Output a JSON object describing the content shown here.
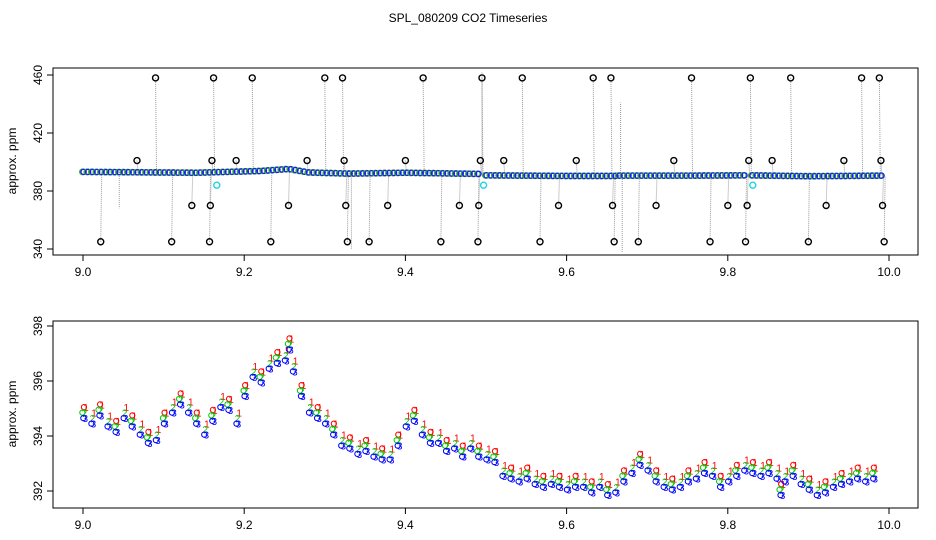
{
  "title": "SPL_080209  CO2 Timeseries",
  "chart_data": [
    {
      "type": "scatter",
      "ylabel": "approx. ppm",
      "xlabel": "",
      "xlim": [
        9.0,
        10.0
      ],
      "ylim": [
        340,
        460
      ],
      "xticks": [
        "9.0",
        "9.2",
        "9.4",
        "9.6",
        "9.8",
        "10.0"
      ],
      "yticks": [
        "340",
        "380",
        "420",
        "460"
      ],
      "xtick_values": [
        9.0,
        9.2,
        9.4,
        9.6,
        9.8,
        10.0
      ],
      "ytick_values": [
        340,
        380,
        420,
        460
      ],
      "baseline_segments": [
        {
          "x": [
            9.0,
            9.14,
            9.22,
            9.255,
            9.28,
            9.33
          ],
          "y": [
            393.2,
            392.6,
            393.8,
            395.2,
            392.8,
            392.0
          ]
        },
        {
          "x": [
            9.33,
            9.4,
            9.49
          ],
          "y": [
            392.0,
            392.6,
            391.8
          ]
        },
        {
          "x": [
            9.5,
            9.6,
            9.66
          ],
          "y": [
            390.8,
            390.4,
            390.4
          ]
        },
        {
          "x": [
            9.665,
            9.75,
            9.82
          ],
          "y": [
            390.6,
            390.6,
            390.8
          ]
        },
        {
          "x": [
            9.83,
            9.9,
            9.99
          ],
          "y": [
            390.8,
            390.2,
            390.6
          ]
        }
      ],
      "outliers": [
        {
          "x": 9.022,
          "y": 345
        },
        {
          "x": 9.067,
          "y": 401
        },
        {
          "x": 9.09,
          "y": 458
        },
        {
          "x": 9.11,
          "y": 345
        },
        {
          "x": 9.135,
          "y": 370
        },
        {
          "x": 9.157,
          "y": 345
        },
        {
          "x": 9.158,
          "y": 370
        },
        {
          "x": 9.16,
          "y": 401
        },
        {
          "x": 9.162,
          "y": 458
        },
        {
          "x": 9.19,
          "y": 401
        },
        {
          "x": 9.21,
          "y": 458
        },
        {
          "x": 9.233,
          "y": 345
        },
        {
          "x": 9.255,
          "y": 370
        },
        {
          "x": 9.278,
          "y": 401
        },
        {
          "x": 9.3,
          "y": 458
        },
        {
          "x": 9.322,
          "y": 458
        },
        {
          "x": 9.324,
          "y": 401
        },
        {
          "x": 9.326,
          "y": 370
        },
        {
          "x": 9.328,
          "y": 345
        },
        {
          "x": 9.355,
          "y": 345
        },
        {
          "x": 9.378,
          "y": 370
        },
        {
          "x": 9.4,
          "y": 401
        },
        {
          "x": 9.422,
          "y": 458
        },
        {
          "x": 9.444,
          "y": 345
        },
        {
          "x": 9.467,
          "y": 370
        },
        {
          "x": 9.49,
          "y": 345
        },
        {
          "x": 9.491,
          "y": 370
        },
        {
          "x": 9.493,
          "y": 401
        },
        {
          "x": 9.495,
          "y": 458
        },
        {
          "x": 9.522,
          "y": 401
        },
        {
          "x": 9.545,
          "y": 458
        },
        {
          "x": 9.567,
          "y": 345
        },
        {
          "x": 9.59,
          "y": 370
        },
        {
          "x": 9.612,
          "y": 401
        },
        {
          "x": 9.633,
          "y": 458
        },
        {
          "x": 9.655,
          "y": 458
        },
        {
          "x": 9.657,
          "y": 370
        },
        {
          "x": 9.659,
          "y": 345
        },
        {
          "x": 9.689,
          "y": 345
        },
        {
          "x": 9.711,
          "y": 370
        },
        {
          "x": 9.733,
          "y": 401
        },
        {
          "x": 9.755,
          "y": 458
        },
        {
          "x": 9.778,
          "y": 345
        },
        {
          "x": 9.8,
          "y": 370
        },
        {
          "x": 9.822,
          "y": 345
        },
        {
          "x": 9.824,
          "y": 370
        },
        {
          "x": 9.826,
          "y": 401
        },
        {
          "x": 9.828,
          "y": 458
        },
        {
          "x": 9.855,
          "y": 401
        },
        {
          "x": 9.878,
          "y": 458
        },
        {
          "x": 9.9,
          "y": 345
        },
        {
          "x": 9.922,
          "y": 370
        },
        {
          "x": 9.944,
          "y": 401
        },
        {
          "x": 9.966,
          "y": 458
        },
        {
          "x": 9.988,
          "y": 458
        },
        {
          "x": 9.99,
          "y": 401
        },
        {
          "x": 9.992,
          "y": 370
        },
        {
          "x": 9.994,
          "y": 345
        }
      ],
      "cyan_points": [
        {
          "x": 9.166,
          "y": 384
        },
        {
          "x": 9.497,
          "y": 384
        },
        {
          "x": 9.831,
          "y": 384
        }
      ],
      "spikes": [
        {
          "x": 9.045,
          "y1": 393,
          "y2": 368
        },
        {
          "x": 9.333,
          "y1": 392,
          "y2": 340
        },
        {
          "x": 9.495,
          "y1": 392,
          "y2": 462
        },
        {
          "x": 9.667,
          "y1": 391,
          "y2": 441
        },
        {
          "x": 9.669,
          "y1": 391,
          "y2": 338
        }
      ]
    },
    {
      "type": "scatter",
      "ylabel": "approx. ppm",
      "xlabel": "",
      "xlim": [
        9.0,
        10.0
      ],
      "ylim": [
        391.3,
        398.2
      ],
      "xticks": [
        "9.0",
        "9.2",
        "9.4",
        "9.6",
        "9.8",
        "10.0"
      ],
      "yticks": [
        "392",
        "394",
        "396",
        "398"
      ],
      "xtick_values": [
        9.0,
        9.2,
        9.4,
        9.6,
        9.8,
        10.0
      ],
      "ytick_values": [
        392,
        394,
        396,
        398
      ],
      "series_markers": [
        {
          "name": "1",
          "color": "#ff0000",
          "dx": 0.0012,
          "dy": 0.25
        },
        {
          "name": "2",
          "color": "#00cc00",
          "dx": -0.0008,
          "dy": 0.05
        },
        {
          "name": "3",
          "color": "#0000ff",
          "dx": 0.0004,
          "dy": -0.15
        }
      ],
      "points": [
        [
          9.0,
          394.8
        ],
        [
          9.01,
          394.6
        ],
        [
          9.02,
          394.9
        ],
        [
          9.03,
          394.5
        ],
        [
          9.04,
          394.3
        ],
        [
          9.05,
          394.8
        ],
        [
          9.06,
          394.5
        ],
        [
          9.07,
          394.2
        ],
        [
          9.08,
          393.9
        ],
        [
          9.09,
          394.0
        ],
        [
          9.1,
          394.6
        ],
        [
          9.11,
          395.0
        ],
        [
          9.12,
          395.3
        ],
        [
          9.13,
          395.0
        ],
        [
          9.14,
          394.6
        ],
        [
          9.15,
          394.2
        ],
        [
          9.16,
          394.7
        ],
        [
          9.17,
          395.2
        ],
        [
          9.18,
          395.1
        ],
        [
          9.19,
          394.6
        ],
        [
          9.2,
          395.6
        ],
        [
          9.21,
          396.3
        ],
        [
          9.22,
          396.1
        ],
        [
          9.23,
          396.6
        ],
        [
          9.24,
          396.8
        ],
        [
          9.25,
          396.9
        ],
        [
          9.255,
          397.3
        ],
        [
          9.26,
          396.5
        ],
        [
          9.27,
          395.6
        ],
        [
          9.28,
          395.0
        ],
        [
          9.29,
          394.8
        ],
        [
          9.3,
          394.6
        ],
        [
          9.31,
          394.2
        ],
        [
          9.32,
          393.8
        ],
        [
          9.33,
          393.7
        ],
        [
          9.34,
          393.5
        ],
        [
          9.35,
          393.6
        ],
        [
          9.36,
          393.4
        ],
        [
          9.37,
          393.3
        ],
        [
          9.38,
          393.3
        ],
        [
          9.39,
          393.8
        ],
        [
          9.4,
          394.5
        ],
        [
          9.41,
          394.7
        ],
        [
          9.42,
          394.2
        ],
        [
          9.43,
          393.9
        ],
        [
          9.44,
          393.9
        ],
        [
          9.45,
          393.6
        ],
        [
          9.46,
          393.7
        ],
        [
          9.47,
          393.4
        ],
        [
          9.48,
          393.7
        ],
        [
          9.49,
          393.4
        ],
        [
          9.5,
          393.3
        ],
        [
          9.51,
          393.2
        ],
        [
          9.52,
          392.7
        ],
        [
          9.53,
          392.6
        ],
        [
          9.54,
          392.5
        ],
        [
          9.55,
          392.6
        ],
        [
          9.56,
          392.4
        ],
        [
          9.57,
          392.3
        ],
        [
          9.58,
          392.4
        ],
        [
          9.59,
          392.3
        ],
        [
          9.6,
          392.2
        ],
        [
          9.61,
          392.3
        ],
        [
          9.62,
          392.3
        ],
        [
          9.63,
          392.1
        ],
        [
          9.64,
          392.3
        ],
        [
          9.65,
          392.0
        ],
        [
          9.66,
          392.1
        ],
        [
          9.67,
          392.5
        ],
        [
          9.68,
          392.8
        ],
        [
          9.69,
          393.1
        ],
        [
          9.7,
          392.9
        ],
        [
          9.71,
          392.5
        ],
        [
          9.72,
          392.3
        ],
        [
          9.73,
          392.2
        ],
        [
          9.74,
          392.3
        ],
        [
          9.75,
          392.5
        ],
        [
          9.76,
          392.6
        ],
        [
          9.77,
          392.8
        ],
        [
          9.78,
          392.7
        ],
        [
          9.79,
          392.3
        ],
        [
          9.8,
          392.5
        ],
        [
          9.81,
          392.7
        ],
        [
          9.82,
          392.9
        ],
        [
          9.83,
          392.8
        ],
        [
          9.84,
          392.7
        ],
        [
          9.85,
          392.8
        ],
        [
          9.86,
          392.6
        ],
        [
          9.865,
          392.0
        ],
        [
          9.87,
          392.5
        ],
        [
          9.88,
          392.7
        ],
        [
          9.89,
          392.4
        ],
        [
          9.9,
          392.2
        ],
        [
          9.91,
          392.0
        ],
        [
          9.92,
          392.1
        ],
        [
          9.93,
          392.3
        ],
        [
          9.94,
          392.4
        ],
        [
          9.95,
          392.5
        ],
        [
          9.96,
          392.6
        ],
        [
          9.97,
          392.5
        ],
        [
          9.98,
          392.6
        ]
      ]
    }
  ]
}
